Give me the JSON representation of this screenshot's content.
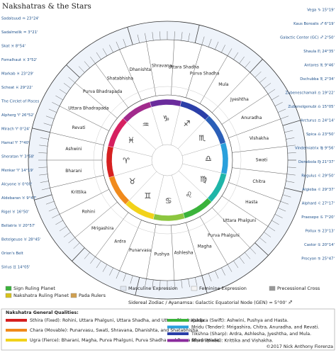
{
  "header": {
    "title": "Nakshatras & the Stars"
  },
  "nakshatras": [
    "Shravana",
    "Uttara Shadha",
    "Purva Shadha",
    "Mula",
    "Jyeshtha",
    "Anuradha",
    "Vishakha",
    "Swati",
    "Chitra",
    "Hasta",
    "Uttara Phalguni",
    "Purva Phalguni",
    "Magha",
    "Ashlesha",
    "Pushya",
    "Punarvasu",
    "Ardra",
    "Mrigashira",
    "Rohini",
    "Krittika",
    "Bharani",
    "Ashwini",
    "Revati",
    "Uttara Bhadrapada",
    "Purva Bhadrapada",
    "Shatabhisha",
    "Dhanishta"
  ],
  "zodiac_glyphs": [
    "♈",
    "♉",
    "♊",
    "♋",
    "♌",
    "♍",
    "♎",
    "♏",
    "♐",
    "♑",
    "♒",
    "♓"
  ],
  "stars_left": [
    "Sadalsuud ♒ 23°24'",
    "Sadalmelik ♒ 3°21'",
    "Skat ♓ 8°54'",
    "Fomalhaut ♓ 3°52'",
    "Markab ♓ 23°29'",
    "Scheat ♓ 29°22'",
    "The Circlet of Pisces",
    "Alpherg ♈ 26°52'",
    "Mirach ♈ 0°24'",
    "Hamal ♈ 7°40'",
    "Sheratan ♈ 3°58'",
    "Menkar ♈ 14°19'",
    "Alcyone ♉ 0°00'",
    "Aldebaran ♉ 9°47'",
    "Rigel ♉ 16°50'",
    "Bellatrix ♉ 20°57'",
    "Betelgeuse ♉ 28°45'",
    "Orion's Belt",
    "Sirius ♊ 14°05'"
  ],
  "stars_right": [
    "Vega ♑ 15°19'",
    "Kaus Borealis ♐ 6°19'",
    "Galactic Center (GC) ♐ 2°50'",
    "Shaula ♏ 24°35'",
    "Antares ♏ 9°46'",
    "Dschubba ♏ 2°34'",
    "Zubeneschamali ♎ 19°22'",
    "Zubenelgenubi ♎ 15°05'",
    "Arcturus ♎ 24°14'",
    "Spica ♎ 23°50'",
    "Vindemiatrix ♍ 9°56'",
    "Denebola ♍ 21°37'",
    "Regulus ♌ 29°50'",
    "Algieba ♌ 29°37'",
    "Alphard ♌ 27°17'",
    "Praesepe ♋ 7°20'",
    "Pollux ♋ 23°13'",
    "Castor ♋ 20°14'",
    "Procyon ♋ 25°47'"
  ],
  "legend": {
    "sign_ruler": "Sign Ruling Planet",
    "nakshatra_ruler": "Nakshatra Ruling Planet",
    "pada": "Pada Rulers",
    "masculine": "Masculine Expression",
    "feminine": "Feminine Expression",
    "cross": "Precessional Cross",
    "sidereal": "Sidereal Zodiac / Ayanamsa: Galactic Equatorial Node (GEN) = 5°00' ♐"
  },
  "qualities": {
    "heading": "Nakshatra General Qualities:",
    "items": [
      {
        "color": "#d62020",
        "text": "Sthira (Fixed): Rohini, Uttara Phalguni, Uttara Shadha, and Uttara Bhadrapada."
      },
      {
        "color": "#f08a1c",
        "text": "Chara (Movable): Punarvasu, Swati, Shravana, Dhanishta, and Shatabhisha."
      },
      {
        "color": "#f2d21a",
        "text": "Ugra (Fierce): Bharani, Magha, Purva Phalguni, Purva Shadha and Purva Bhadrapada."
      },
      {
        "color": "#3bb33b",
        "text": "Kshipra (Swift): Ashwini, Pushya and Hasta."
      },
      {
        "color": "#2aa0dc",
        "text": "Mridu (Tender): Mrigashira, Chitra, Anuradha, and Revati."
      },
      {
        "color": "#2b3fa8",
        "text": "Tikshna (Sharp): Ardra, Ashlesha, Jyeshtha, and Mula."
      },
      {
        "color": "#8a2b9c",
        "text": "Misra (Mixed): Krittika and Vishakha."
      }
    ]
  },
  "footer": {
    "copyright": "©2017 Nick Anthony Fiorenza"
  }
}
